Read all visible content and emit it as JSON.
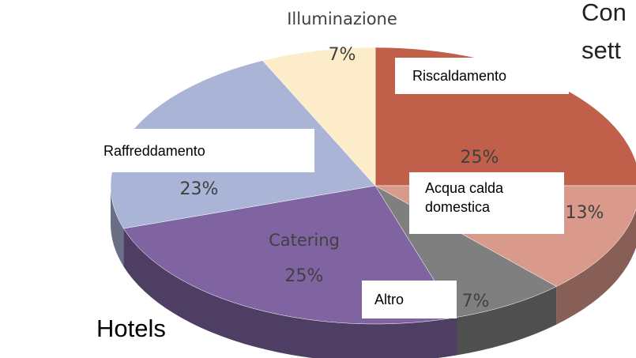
{
  "chart_data": {
    "type": "pie3d",
    "title_lines": [
      "Con",
      "sett"
    ],
    "subtitle": "Hotels",
    "categories": [
      "Riscaldamento",
      "Acqua calda domestica",
      "Altro",
      "Catering",
      "Raffreddamento",
      "Illuminazione"
    ],
    "values": [
      25,
      13,
      7,
      25,
      23,
      7
    ],
    "value_labels": [
      "25%",
      "13%",
      "7%",
      "25%",
      "23%",
      "7%"
    ],
    "colors": [
      "#c0604a",
      "#d99a8b",
      "#7f7f7f",
      "#8064a2",
      "#aab4d6",
      "#fdecca"
    ]
  }
}
